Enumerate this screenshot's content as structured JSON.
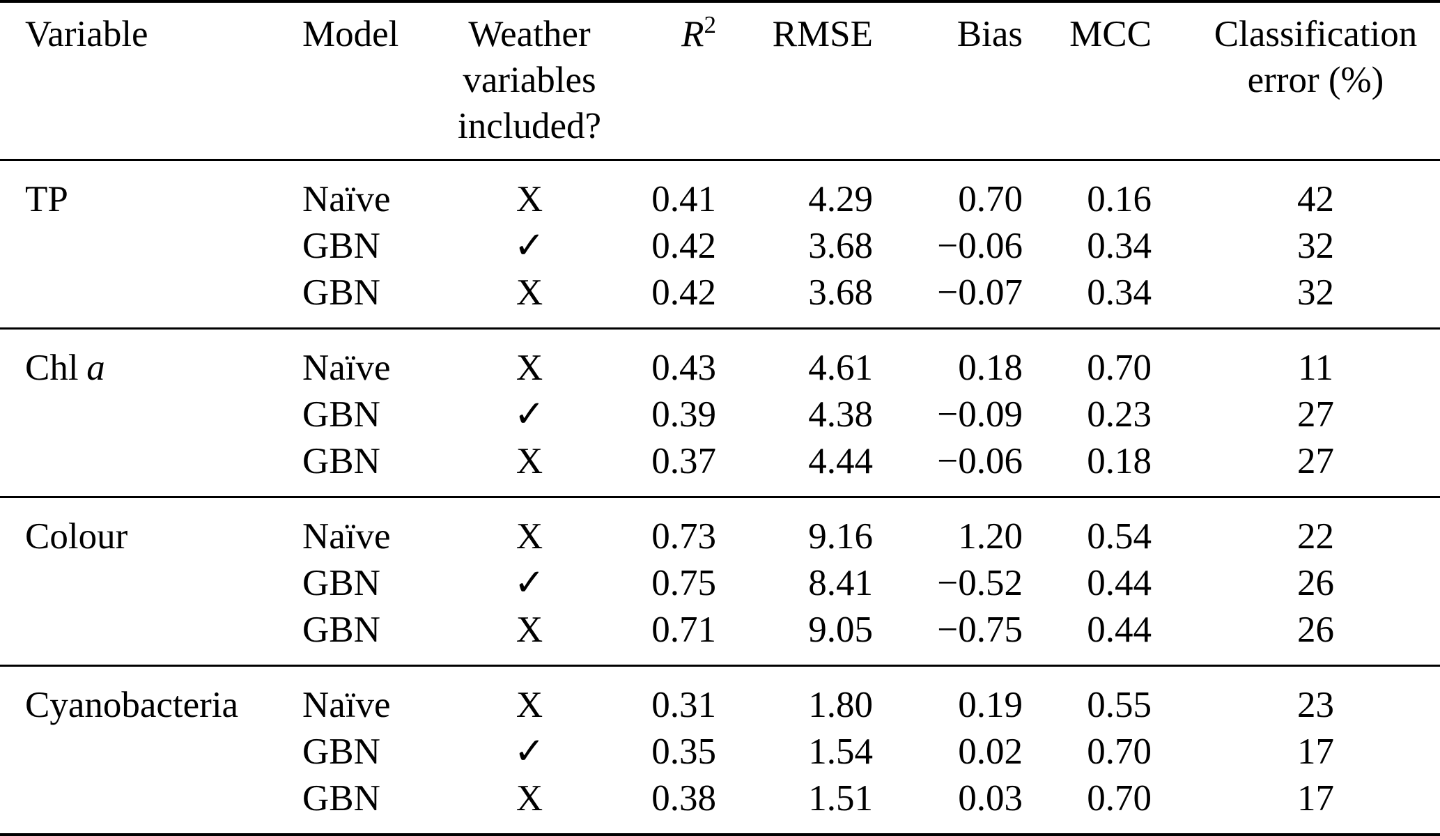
{
  "header": {
    "variable": "Variable",
    "model": "Model",
    "weather": [
      "Weather",
      "variables",
      "included?"
    ],
    "r2": {
      "base": "R",
      "sup": "2"
    },
    "rmse": "RMSE",
    "bias": "Bias",
    "mcc": "MCC",
    "classification": [
      "Classification",
      "error (%)"
    ]
  },
  "symbols": {
    "check": "✓",
    "cross": "X"
  },
  "groups": [
    {
      "variable": "TP",
      "variable_italic": "",
      "rows": [
        {
          "model": "Naïve",
          "weather": "cross",
          "r2": "0.41",
          "rmse": "4.29",
          "bias": "0.70",
          "mcc": "0.16",
          "class_error": "42"
        },
        {
          "model": "GBN",
          "weather": "check",
          "r2": "0.42",
          "rmse": "3.68",
          "bias": "−0.06",
          "mcc": "0.34",
          "class_error": "32"
        },
        {
          "model": "GBN",
          "weather": "cross",
          "r2": "0.42",
          "rmse": "3.68",
          "bias": "−0.07",
          "mcc": "0.34",
          "class_error": "32"
        }
      ]
    },
    {
      "variable": "Chl",
      "variable_italic": "a",
      "rows": [
        {
          "model": "Naïve",
          "weather": "cross",
          "r2": "0.43",
          "rmse": "4.61",
          "bias": "0.18",
          "mcc": "0.70",
          "class_error": "11"
        },
        {
          "model": "GBN",
          "weather": "check",
          "r2": "0.39",
          "rmse": "4.38",
          "bias": "−0.09",
          "mcc": "0.23",
          "class_error": "27"
        },
        {
          "model": "GBN",
          "weather": "cross",
          "r2": "0.37",
          "rmse": "4.44",
          "bias": "−0.06",
          "mcc": "0.18",
          "class_error": "27"
        }
      ]
    },
    {
      "variable": "Colour",
      "variable_italic": "",
      "rows": [
        {
          "model": "Naïve",
          "weather": "cross",
          "r2": "0.73",
          "rmse": "9.16",
          "bias": "1.20",
          "mcc": "0.54",
          "class_error": "22"
        },
        {
          "model": "GBN",
          "weather": "check",
          "r2": "0.75",
          "rmse": "8.41",
          "bias": "−0.52",
          "mcc": "0.44",
          "class_error": "26"
        },
        {
          "model": "GBN",
          "weather": "cross",
          "r2": "0.71",
          "rmse": "9.05",
          "bias": "−0.75",
          "mcc": "0.44",
          "class_error": "26"
        }
      ]
    },
    {
      "variable": "Cyanobacteria",
      "variable_italic": "",
      "rows": [
        {
          "model": "Naïve",
          "weather": "cross",
          "r2": "0.31",
          "rmse": "1.80",
          "bias": "0.19",
          "mcc": "0.55",
          "class_error": "23"
        },
        {
          "model": "GBN",
          "weather": "check",
          "r2": "0.35",
          "rmse": "1.54",
          "bias": "0.02",
          "mcc": "0.70",
          "class_error": "17"
        },
        {
          "model": "GBN",
          "weather": "cross",
          "r2": "0.38",
          "rmse": "1.51",
          "bias": "0.03",
          "mcc": "0.70",
          "class_error": "17"
        }
      ]
    }
  ],
  "chart_data": {
    "type": "table",
    "title": "",
    "columns": [
      "Variable",
      "Model",
      "Weather variables included?",
      "R2",
      "RMSE",
      "Bias",
      "MCC",
      "Classification error (%)"
    ],
    "rows": [
      [
        "TP",
        "Naïve",
        "X",
        0.41,
        4.29,
        0.7,
        0.16,
        42
      ],
      [
        "TP",
        "GBN",
        "✓",
        0.42,
        3.68,
        -0.06,
        0.34,
        32
      ],
      [
        "TP",
        "GBN",
        "X",
        0.42,
        3.68,
        -0.07,
        0.34,
        32
      ],
      [
        "Chl a",
        "Naïve",
        "X",
        0.43,
        4.61,
        0.18,
        0.7,
        11
      ],
      [
        "Chl a",
        "GBN",
        "✓",
        0.39,
        4.38,
        -0.09,
        0.23,
        27
      ],
      [
        "Chl a",
        "GBN",
        "X",
        0.37,
        4.44,
        -0.06,
        0.18,
        27
      ],
      [
        "Colour",
        "Naïve",
        "X",
        0.73,
        9.16,
        1.2,
        0.54,
        22
      ],
      [
        "Colour",
        "GBN",
        "✓",
        0.75,
        8.41,
        -0.52,
        0.44,
        26
      ],
      [
        "Colour",
        "GBN",
        "X",
        0.71,
        9.05,
        -0.75,
        0.44,
        26
      ],
      [
        "Cyanobacteria",
        "Naïve",
        "X",
        0.31,
        1.8,
        0.19,
        0.55,
        23
      ],
      [
        "Cyanobacteria",
        "GBN",
        "✓",
        0.35,
        1.54,
        0.02,
        0.7,
        17
      ],
      [
        "Cyanobacteria",
        "GBN",
        "X",
        0.38,
        1.51,
        0.03,
        0.7,
        17
      ]
    ]
  }
}
